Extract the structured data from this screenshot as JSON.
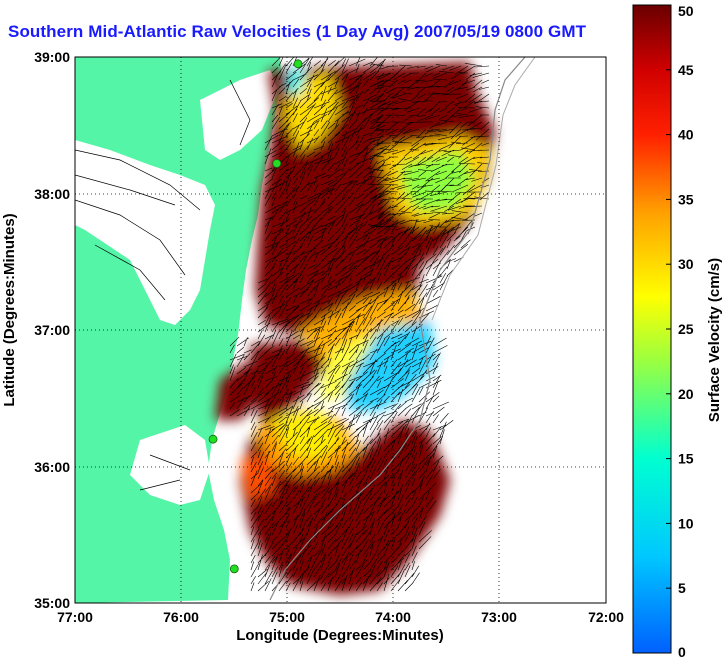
{
  "title": "Southern Mid-Atlantic Raw Velocities (1 Day Avg) 2007/05/19 0800 GMT",
  "xlabel": "Longitude (Degrees:Minutes)",
  "ylabel": "Latitude (Degrees:Minutes)",
  "x_ticks": [
    "77:00",
    "76:00",
    "75:00",
    "74:00",
    "73:00",
    "72:00"
  ],
  "y_ticks": [
    "39:00",
    "38:00",
    "37:00",
    "36:00",
    "35:00"
  ],
  "colorbar": {
    "label": "Surface Velocity (cm/s)",
    "ticks": [
      "0",
      "5",
      "10",
      "15",
      "20",
      "25",
      "30",
      "35",
      "40",
      "45",
      "50"
    ],
    "range": [
      0,
      50
    ]
  },
  "colors": {
    "land": "#55f5a8",
    "title": "#1a1aff",
    "station": "#22dd22"
  },
  "map": {
    "lon_range": [
      -77,
      -72
    ],
    "lat_range": [
      35,
      39
    ],
    "stations": [
      {
        "lon": -74.9,
        "lat": 38.95
      },
      {
        "lon": -75.1,
        "lat": 38.22
      },
      {
        "lon": -75.7,
        "lat": 36.2
      },
      {
        "lon": -75.5,
        "lat": 35.25
      }
    ]
  }
}
